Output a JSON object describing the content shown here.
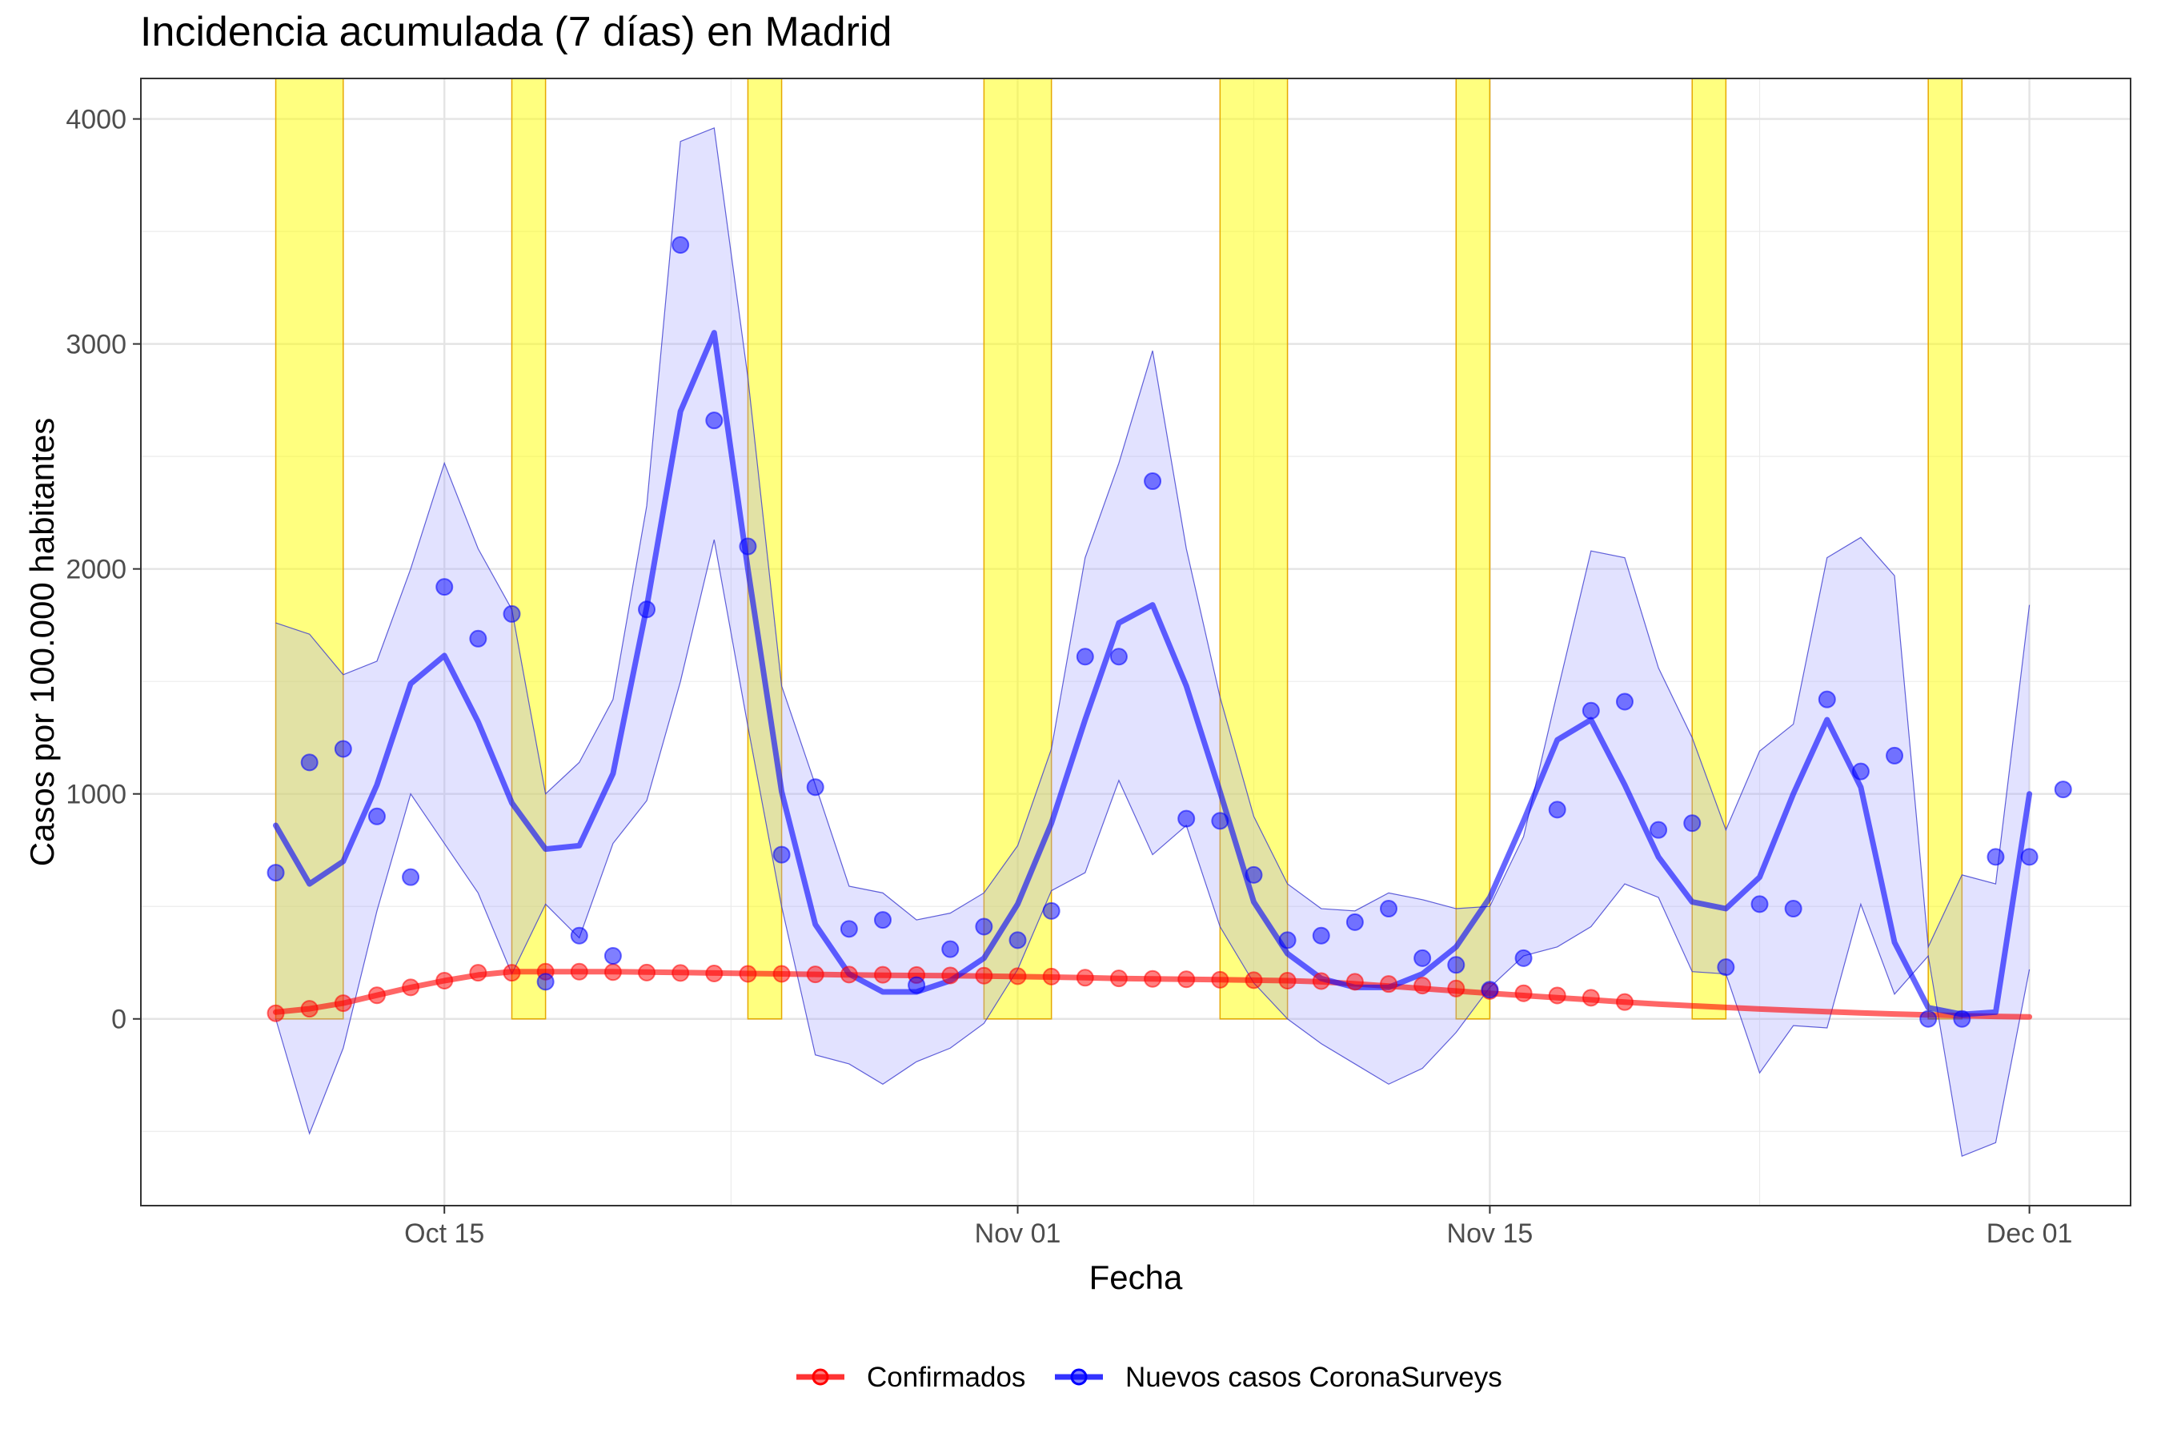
{
  "chart_data": {
    "type": "line",
    "title": "Incidencia acumulada (7 días) en Madrid",
    "xlabel": "Fecha",
    "ylabel": "Casos por 100.000 habitantes",
    "x_start": "2020-10-07",
    "x_end": "2020-12-03",
    "xlim": [
      "2020-10-06",
      "2020-12-04"
    ],
    "ylim": [
      -830,
      4180
    ],
    "y_ticks": [
      0,
      1000,
      2000,
      3000,
      4000
    ],
    "y_tick_labels": [
      "0",
      "1000",
      "2000",
      "3000",
      "4000"
    ],
    "x_ticks": [
      "2020-10-15",
      "2020-11-01",
      "2020-11-15",
      "2020-12-01"
    ],
    "x_tick_labels": [
      "Oct 15",
      "Nov 01",
      "Nov 15",
      "Dec 01"
    ],
    "grid": true,
    "legend_position": "bottom",
    "weekend_bands": [
      [
        "2020-10-10",
        "2020-10-12"
      ],
      [
        "2020-10-17",
        "2020-10-18"
      ],
      [
        "2020-10-24",
        "2020-10-25"
      ],
      [
        "2020-10-31",
        "2020-11-02"
      ],
      [
        "2020-11-07",
        "2020-11-09"
      ],
      [
        "2020-11-14",
        "2020-11-15"
      ],
      [
        "2020-11-21",
        "2020-11-22"
      ],
      [
        "2020-11-28",
        "2020-11-29"
      ]
    ],
    "weekend_band_color": "#ffff00",
    "weekend_band_border": "#e6a800",
    "band_color": "#a0a0ff",
    "series": [
      {
        "name": "Confirmados",
        "color": "#ff0000",
        "x_start": "2020-10-10",
        "line_y": [
          30,
          45,
          70,
          105,
          140,
          170,
          195,
          210,
          210,
          210,
          210,
          208,
          206,
          204,
          202,
          200,
          198,
          196,
          194,
          193,
          192,
          190,
          188,
          186,
          183,
          180,
          178,
          176,
          174,
          172,
          170,
          165,
          156,
          146,
          135,
          124,
          114,
          104,
          94,
          85,
          75,
          66,
          58,
          51,
          44,
          38,
          32,
          27,
          22,
          18,
          14,
          11,
          9
        ],
        "points_y": [
          25,
          45,
          70,
          105,
          140,
          170,
          205,
          205,
          210,
          210,
          208,
          206,
          204,
          202,
          200,
          200,
          198,
          197,
          196,
          195,
          193,
          192,
          190,
          188,
          183,
          180,
          178,
          176,
          174,
          172,
          170,
          168,
          165,
          155,
          148,
          135,
          124,
          114,
          104,
          94,
          75
        ]
      },
      {
        "name": "Nuevos casos CoronaSurveys",
        "color": "#0000ff",
        "x_start": "2020-10-10",
        "line_y": [
          860,
          600,
          700,
          1040,
          1490,
          1615,
          1320,
          960,
          755,
          770,
          1090,
          1830,
          2700,
          3050,
          2000,
          1010,
          420,
          200,
          120,
          120,
          170,
          270,
          510,
          870,
          1330,
          1760,
          1840,
          1480,
          1010,
          520,
          290,
          180,
          140,
          140,
          200,
          320,
          540,
          880,
          1240,
          1330,
          1040,
          720,
          520,
          490,
          630,
          1000,
          1330,
          1030,
          340,
          50,
          20,
          30,
          1000
        ],
        "points_y": [
          650,
          1140,
          1200,
          900,
          630,
          1920,
          1690,
          1800,
          165,
          370,
          280,
          1820,
          3440,
          2660,
          2100,
          730,
          1030,
          400,
          440,
          150,
          310,
          410,
          350,
          480,
          1610,
          1610,
          2390,
          890,
          880,
          640,
          350,
          370,
          430,
          490,
          270,
          240,
          130,
          270,
          930,
          1370,
          1410,
          840,
          870,
          230,
          510,
          490,
          1420,
          1100,
          1170,
          0,
          0,
          720,
          720,
          1020
        ],
        "lower_y": [
          0,
          -510,
          -130,
          480,
          1000,
          780,
          560,
          200,
          510,
          360,
          780,
          970,
          1500,
          2130,
          1300,
          500,
          -160,
          -200,
          -290,
          -190,
          -130,
          -20,
          220,
          570,
          650,
          1060,
          730,
          860,
          410,
          160,
          0,
          -110,
          -200,
          -290,
          -220,
          -60,
          140,
          280,
          320,
          410,
          600,
          540,
          210,
          200,
          -240,
          -30,
          -40,
          510,
          110,
          280,
          -610,
          -550,
          220
        ],
        "upper_y": [
          1760,
          1710,
          1530,
          1590,
          2000,
          2470,
          2090,
          1820,
          1000,
          1140,
          1420,
          2280,
          3900,
          3960,
          2850,
          1480,
          1040,
          590,
          560,
          440,
          470,
          560,
          770,
          1200,
          2050,
          2470,
          2970,
          2090,
          1430,
          900,
          600,
          490,
          480,
          560,
          530,
          490,
          500,
          810,
          1450,
          2080,
          2050,
          1560,
          1250,
          840,
          1190,
          1310,
          2050,
          2140,
          1970,
          320,
          640,
          600,
          1840
        ]
      }
    ]
  }
}
